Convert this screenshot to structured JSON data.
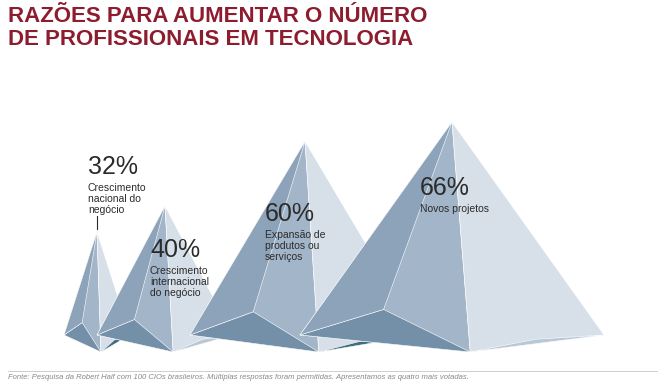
{
  "chart_data": {
    "type": "pyramid",
    "title": "RAZÕES PARA AUMENTAR O NÚMERO DE PROFISSIONAIS EM TECNOLOGIA",
    "categories": [
      "Crescimento nacional do negócio",
      "Crescimento internacional do negócio",
      "Expansão de produtos ou serviços",
      "Novos projetos"
    ],
    "values": [
      32,
      40,
      60,
      66
    ],
    "value_labels": [
      "32%",
      "40%",
      "60%",
      "66%"
    ],
    "data_labels": true,
    "tick_labels": false,
    "annotations": [
      "Fonte: Pesquisa da Robert Half com 100 CIOs brasileiros. Múltiplas respostas foram permitidas. Apresentamos as quatro mais votadas."
    ]
  }
}
